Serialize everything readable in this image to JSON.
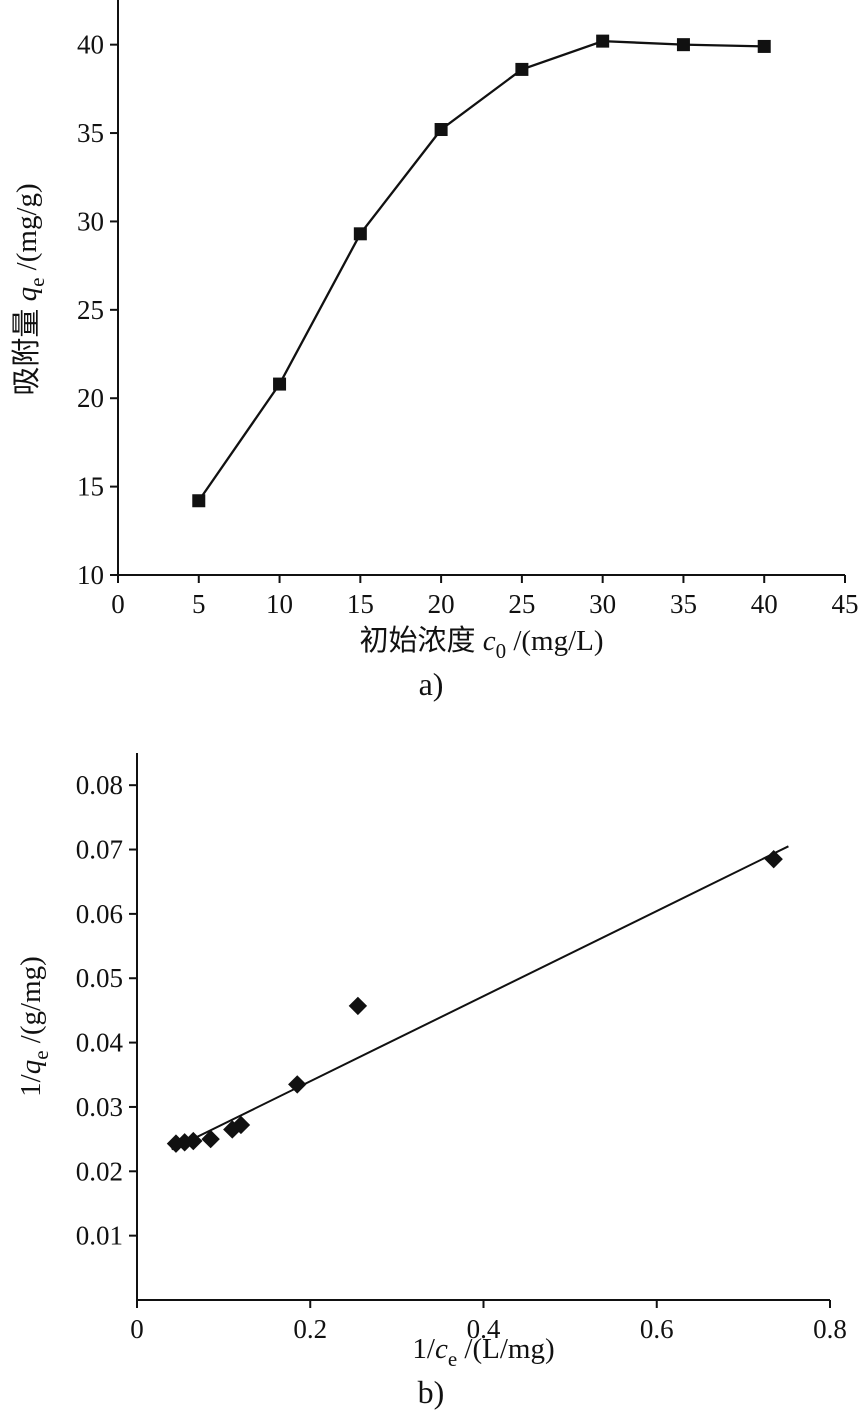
{
  "page": {
    "background": "#ffffff",
    "ink_color": "#111111"
  },
  "chart_data": [
    {
      "type": "line",
      "caption": "a)",
      "title": "",
      "xlabel": "初始浓度 c0 /(mg/L)",
      "ylabel": "吸附量 qe /(mg/g)",
      "xlabel_parts": [
        {
          "t": "初始浓度 "
        },
        {
          "t": "c",
          "i": true
        },
        {
          "t": "0",
          "sub": true
        },
        {
          "t": " /(mg/L)"
        }
      ],
      "ylabel_parts": [
        {
          "t": "吸附量 "
        },
        {
          "t": "q",
          "i": true
        },
        {
          "t": "e",
          "sub": true
        },
        {
          "t": " /(mg/g)"
        }
      ],
      "xlim": [
        0,
        45
      ],
      "ylim": [
        10,
        42.3
      ],
      "xticks": [
        0,
        5,
        10,
        15,
        20,
        25,
        30,
        35,
        40,
        45
      ],
      "xtick_labels": [
        "0",
        "5",
        "10",
        "15",
        "20",
        "25",
        "30",
        "35",
        "40",
        "45"
      ],
      "yticks": [
        10,
        15,
        20,
        25,
        30,
        35,
        40
      ],
      "ytick_labels": [
        "10",
        "15",
        "20",
        "25",
        "30",
        "35",
        "40"
      ],
      "grid": false,
      "legend": "none",
      "marker": "square",
      "connect": true,
      "x": [
        5,
        10,
        15,
        20,
        25,
        30,
        35,
        40
      ],
      "y": [
        14.2,
        20.8,
        29.3,
        35.2,
        38.6,
        40.2,
        40.0,
        39.9
      ]
    },
    {
      "type": "scatter",
      "caption": "b)",
      "title": "",
      "xlabel": "1/ce /(L/mg)",
      "ylabel": "1/qe /(g/mg)",
      "xlabel_parts": [
        {
          "t": "1/"
        },
        {
          "t": "c",
          "i": true
        },
        {
          "t": "e",
          "sub": true
        },
        {
          "t": " /(L/mg)"
        }
      ],
      "ylabel_parts": [
        {
          "t": "1/"
        },
        {
          "t": "q",
          "i": true
        },
        {
          "t": "e",
          "sub": true
        },
        {
          "t": " /(g/mg)"
        }
      ],
      "xlim": [
        0,
        0.8
      ],
      "ylim": [
        0,
        0.085
      ],
      "xticks": [
        0,
        0.2,
        0.4,
        0.6,
        0.8
      ],
      "xtick_labels": [
        "0",
        "0.2",
        "0.4",
        "0.6",
        "0.8"
      ],
      "yticks": [
        0.01,
        0.02,
        0.03,
        0.04,
        0.05,
        0.06,
        0.07,
        0.08
      ],
      "ytick_labels": [
        "0.01",
        "0.02",
        "0.03",
        "0.04",
        "0.05",
        "0.06",
        "0.07",
        "0.08"
      ],
      "grid": false,
      "legend": "none",
      "marker": "diamond",
      "connect": false,
      "x": [
        0.045,
        0.055,
        0.065,
        0.085,
        0.11,
        0.12,
        0.185,
        0.255,
        0.735
      ],
      "y": [
        0.0243,
        0.0245,
        0.0247,
        0.025,
        0.0265,
        0.0272,
        0.0335,
        0.0457,
        0.0685
      ],
      "fit_line": {
        "x1": 0.04,
        "y1": 0.0234,
        "x2": 0.752,
        "y2": 0.0705
      }
    }
  ]
}
